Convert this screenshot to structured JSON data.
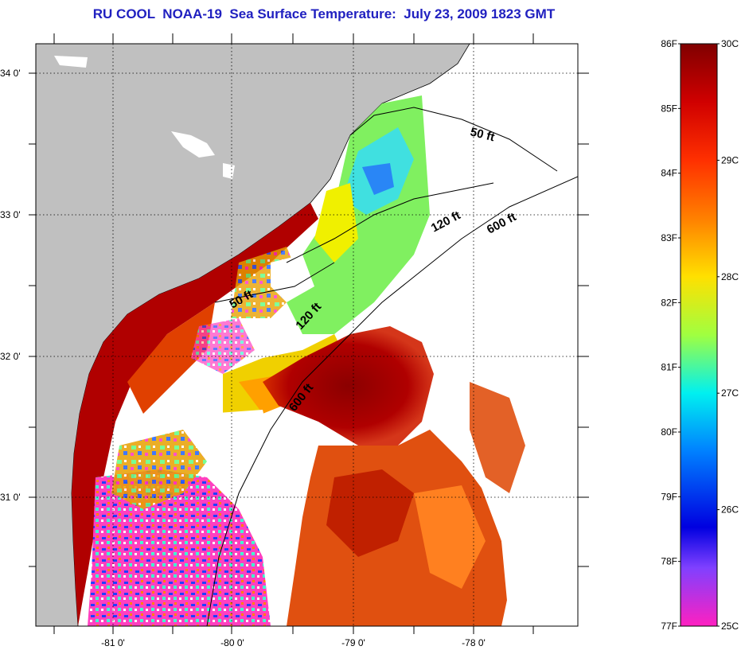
{
  "title": "RU COOL  NOAA-19  Sea Surface Temperature:  July 23, 2009 1823 GMT",
  "map": {
    "lat_ticks": [
      "34 0'",
      "33 0'",
      "32 0'",
      "31 0'"
    ],
    "lon_ticks": [
      "-81 0'",
      "-80 0'",
      "-79 0'",
      "-78 0'"
    ],
    "contour_labels": [
      "50 ft",
      "120 ft",
      "600 ft",
      "50 ft",
      "120 ft",
      "600 ft"
    ],
    "land_color": "#c0c0c0",
    "cloud_color": "#ffffff"
  },
  "colorbar": {
    "fahrenheit_labels": [
      "86F",
      "85F",
      "84F",
      "83F",
      "82F",
      "81F",
      "80F",
      "79F",
      "78F",
      "77F"
    ],
    "celsius_labels": [
      "30C",
      "29C",
      "28C",
      "27C",
      "26C",
      "25C"
    ],
    "min_f": 77,
    "max_f": 86,
    "min_c": 25,
    "max_c": 30
  }
}
